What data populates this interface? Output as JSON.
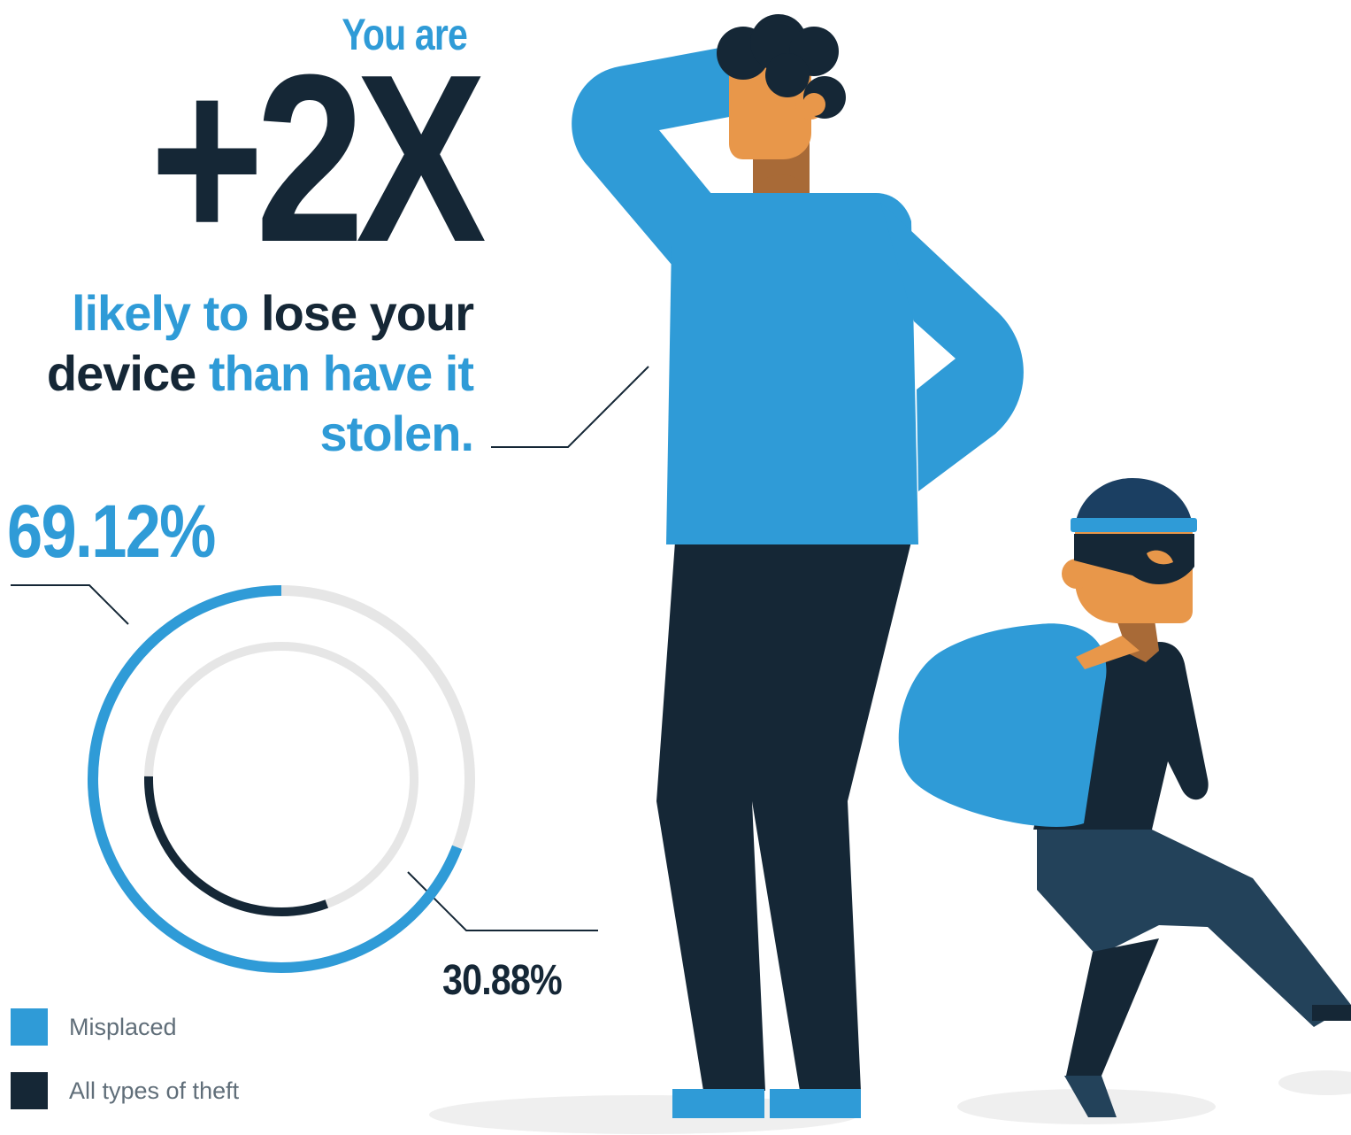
{
  "headline": {
    "intro": "You are",
    "multiplier": "+2X",
    "line1_blue": "likely to",
    "line1_dark": "lose your",
    "line2_dark": "device",
    "line2_blue": "than have it",
    "line3_blue": "stolen."
  },
  "colors": {
    "blue": "#2f9bd7",
    "dark": "#152736",
    "track": "#e6e6e6",
    "skin": "#e8974a",
    "neck": "#a86a37",
    "thief_pants": "#23425a",
    "thief_hat": "#1b3f62",
    "shadow": "#efefef"
  },
  "chart_data": {
    "type": "donut",
    "series": [
      {
        "name": "Misplaced",
        "value": 69.12,
        "label": "69.12%",
        "color": "#2f9bd7",
        "ring": "outer"
      },
      {
        "name": "All types of theft",
        "value": 30.88,
        "label": "30.88%",
        "color": "#152736",
        "ring": "inner"
      }
    ],
    "legend": [
      {
        "label": "Misplaced",
        "color": "#2f9bd7"
      },
      {
        "label": "All types of theft",
        "color": "#152736"
      }
    ],
    "legend_position": "bottom-left"
  },
  "illustration": {
    "person": "person-scratching-head",
    "thief": "masked-thief-with-sack"
  }
}
